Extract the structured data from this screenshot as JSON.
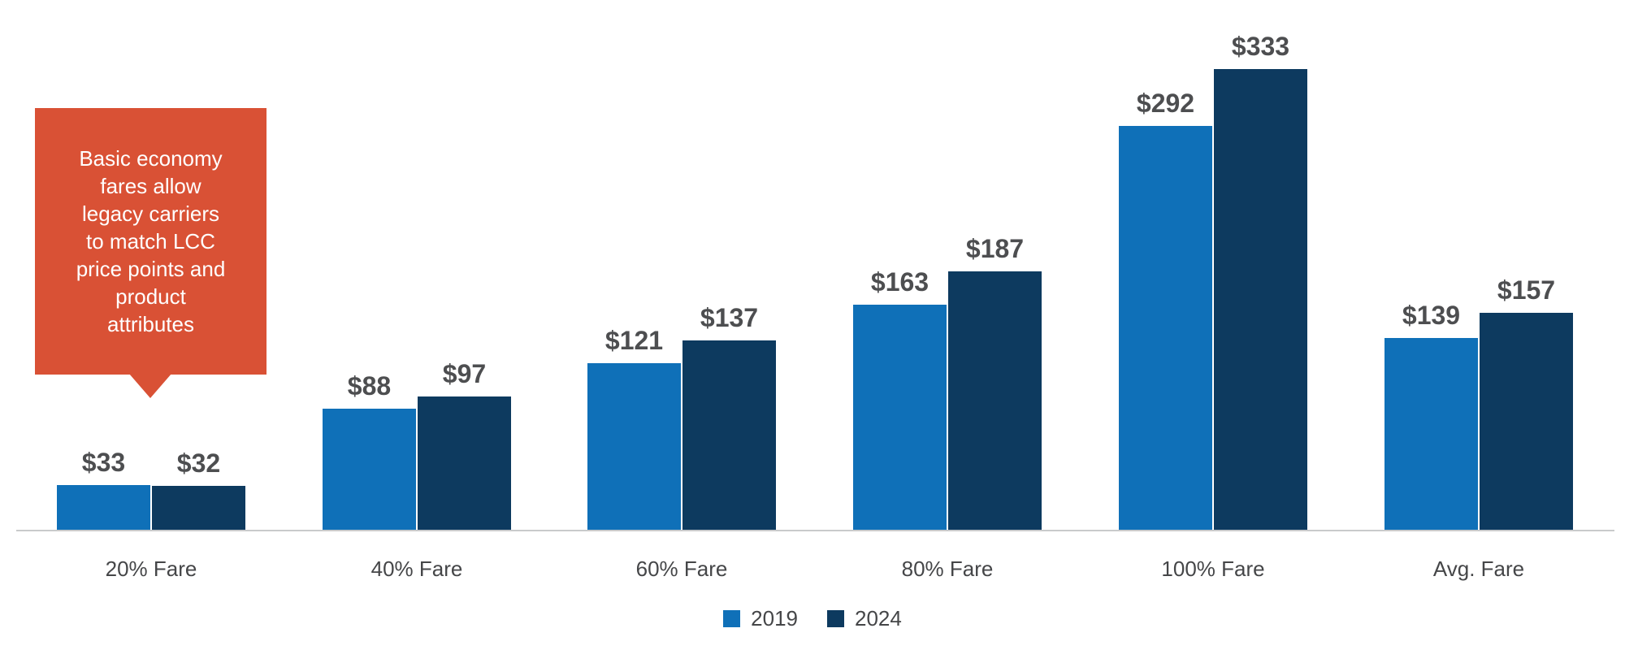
{
  "chart_data": {
    "type": "bar",
    "categories": [
      "20% Fare",
      "40% Fare",
      "60% Fare",
      "80% Fare",
      "100% Fare",
      "Avg. Fare"
    ],
    "series": [
      {
        "name": "2019",
        "color": "#0F70B8",
        "values": [
          33,
          88,
          121,
          163,
          292,
          139
        ],
        "data_labels": [
          "$33",
          "$88",
          "$121",
          "$163",
          "$292",
          "$139"
        ]
      },
      {
        "name": "2024",
        "color": "#0D3A5F",
        "values": [
          32,
          97,
          137,
          187,
          333,
          157
        ],
        "data_labels": [
          "$32",
          "$97",
          "$137",
          "$187",
          "$333",
          "$157"
        ]
      }
    ],
    "title": "",
    "xlabel": "",
    "ylabel": "",
    "ylim": [
      0,
      340
    ],
    "grid": false,
    "y_axis_visible": false,
    "legend_position": "bottom-center",
    "value_prefix": "$"
  },
  "annotation": {
    "text": "Basic economy\nfares allow\nlegacy carriers\nto match LCC\nprice points and\nproduct\nattributes",
    "bg_color": "#D95135",
    "text_color": "#FFFFFF"
  },
  "colors": {
    "axis_line": "#C9CACB",
    "value_label": "#4D4E50",
    "category_label": "#454648",
    "background": "#FFFFFF"
  }
}
